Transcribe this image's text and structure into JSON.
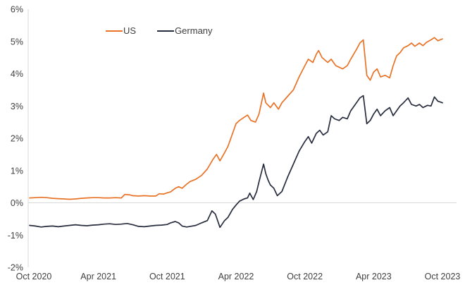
{
  "chart_data": {
    "type": "line",
    "title": "",
    "x_axis": {
      "unit": "months since Oct 2020",
      "range": [
        0,
        36
      ],
      "tick_positions": [
        0,
        6,
        12,
        18,
        24,
        30,
        36
      ],
      "tick_labels": [
        "Oct 2020",
        "Apr 2021",
        "Oct 2021",
        "Apr 2022",
        "Oct 2022",
        "Apr 2023",
        "Oct 2023"
      ]
    },
    "y_axis": {
      "range": [
        -2,
        6
      ],
      "tick_values": [
        6,
        5,
        4,
        3,
        2,
        1,
        0,
        -1,
        -2
      ],
      "tick_labels": [
        "6%",
        "5%",
        "4%",
        "3%",
        "2%",
        "1%",
        "0%",
        "-1%",
        "-2%"
      ],
      "zero_gridline": true
    },
    "legend": {
      "position": "top-center-left",
      "items": [
        {
          "label": "US",
          "color": "#e87326"
        },
        {
          "label": "Germany",
          "color": "#282d3e"
        }
      ]
    },
    "colors": {
      "axis_line": "#d9d9d9",
      "zero_gridline": "#d9d9d9",
      "label_text": "#3f3f3f",
      "background": "#ffffff"
    },
    "series": [
      {
        "name": "US",
        "color": "#e87326",
        "points": [
          [
            0,
            0.15
          ],
          [
            0.5,
            0.16
          ],
          [
            1,
            0.17
          ],
          [
            1.5,
            0.16
          ],
          [
            2,
            0.14
          ],
          [
            2.5,
            0.13
          ],
          [
            3,
            0.12
          ],
          [
            3.5,
            0.11
          ],
          [
            4,
            0.12
          ],
          [
            4.5,
            0.14
          ],
          [
            5,
            0.15
          ],
          [
            5.5,
            0.16
          ],
          [
            6,
            0.16
          ],
          [
            6.5,
            0.15
          ],
          [
            7,
            0.15
          ],
          [
            7.5,
            0.16
          ],
          [
            8,
            0.15
          ],
          [
            8.3,
            0.26
          ],
          [
            8.7,
            0.25
          ],
          [
            9,
            0.22
          ],
          [
            9.5,
            0.21
          ],
          [
            10,
            0.22
          ],
          [
            10.5,
            0.21
          ],
          [
            11,
            0.21
          ],
          [
            11.3,
            0.28
          ],
          [
            11.7,
            0.27
          ],
          [
            12,
            0.31
          ],
          [
            12.3,
            0.34
          ],
          [
            12.7,
            0.45
          ],
          [
            13,
            0.5
          ],
          [
            13.3,
            0.45
          ],
          [
            13.7,
            0.58
          ],
          [
            14,
            0.66
          ],
          [
            14.5,
            0.73
          ],
          [
            15,
            0.85
          ],
          [
            15.5,
            1.05
          ],
          [
            16,
            1.35
          ],
          [
            16.3,
            1.5
          ],
          [
            16.6,
            1.3
          ],
          [
            17,
            1.55
          ],
          [
            17.3,
            1.75
          ],
          [
            17.7,
            2.15
          ],
          [
            18,
            2.45
          ],
          [
            18.3,
            2.55
          ],
          [
            18.7,
            2.65
          ],
          [
            19,
            2.72
          ],
          [
            19.3,
            2.55
          ],
          [
            19.7,
            2.5
          ],
          [
            20,
            2.75
          ],
          [
            20.4,
            3.4
          ],
          [
            20.6,
            3.1
          ],
          [
            21,
            2.95
          ],
          [
            21.3,
            3.1
          ],
          [
            21.7,
            2.9
          ],
          [
            22,
            3.1
          ],
          [
            22.5,
            3.3
          ],
          [
            23,
            3.5
          ],
          [
            23.5,
            3.9
          ],
          [
            24,
            4.25
          ],
          [
            24.3,
            4.45
          ],
          [
            24.7,
            4.35
          ],
          [
            25,
            4.6
          ],
          [
            25.2,
            4.72
          ],
          [
            25.5,
            4.5
          ],
          [
            26,
            4.35
          ],
          [
            26.3,
            4.45
          ],
          [
            26.7,
            4.25
          ],
          [
            27,
            4.2
          ],
          [
            27.3,
            4.15
          ],
          [
            27.7,
            4.25
          ],
          [
            28,
            4.45
          ],
          [
            28.5,
            4.75
          ],
          [
            28.8,
            4.95
          ],
          [
            29.1,
            5.05
          ],
          [
            29.4,
            3.95
          ],
          [
            29.7,
            3.8
          ],
          [
            30,
            4.05
          ],
          [
            30.3,
            4.15
          ],
          [
            30.6,
            3.9
          ],
          [
            31,
            3.95
          ],
          [
            31.4,
            3.87
          ],
          [
            31.7,
            4.25
          ],
          [
            32,
            4.55
          ],
          [
            32.3,
            4.65
          ],
          [
            32.6,
            4.8
          ],
          [
            33,
            4.87
          ],
          [
            33.3,
            4.95
          ],
          [
            33.6,
            4.85
          ],
          [
            34,
            4.95
          ],
          [
            34.3,
            4.87
          ],
          [
            34.6,
            4.97
          ],
          [
            35,
            5.05
          ],
          [
            35.3,
            5.12
          ],
          [
            35.6,
            5.02
          ],
          [
            36,
            5.08
          ]
        ]
      },
      {
        "name": "Germany",
        "color": "#282d3e",
        "points": [
          [
            0,
            -0.7
          ],
          [
            0.5,
            -0.72
          ],
          [
            1,
            -0.75
          ],
          [
            1.5,
            -0.73
          ],
          [
            2,
            -0.72
          ],
          [
            2.5,
            -0.74
          ],
          [
            3,
            -0.72
          ],
          [
            3.5,
            -0.7
          ],
          [
            4,
            -0.68
          ],
          [
            4.5,
            -0.7
          ],
          [
            5,
            -0.71
          ],
          [
            5.5,
            -0.69
          ],
          [
            6,
            -0.68
          ],
          [
            6.5,
            -0.66
          ],
          [
            7,
            -0.65
          ],
          [
            7.5,
            -0.67
          ],
          [
            8,
            -0.66
          ],
          [
            8.5,
            -0.64
          ],
          [
            9,
            -0.68
          ],
          [
            9.5,
            -0.73
          ],
          [
            10,
            -0.74
          ],
          [
            10.5,
            -0.72
          ],
          [
            11,
            -0.7
          ],
          [
            11.5,
            -0.69
          ],
          [
            12,
            -0.67
          ],
          [
            12.3,
            -0.62
          ],
          [
            12.7,
            -0.58
          ],
          [
            13,
            -0.62
          ],
          [
            13.3,
            -0.72
          ],
          [
            13.7,
            -0.75
          ],
          [
            14,
            -0.73
          ],
          [
            14.5,
            -0.7
          ],
          [
            15,
            -0.62
          ],
          [
            15.5,
            -0.55
          ],
          [
            15.9,
            -0.25
          ],
          [
            16.2,
            -0.35
          ],
          [
            16.6,
            -0.76
          ],
          [
            17,
            -0.55
          ],
          [
            17.3,
            -0.45
          ],
          [
            17.7,
            -0.2
          ],
          [
            18,
            -0.07
          ],
          [
            18.3,
            0.05
          ],
          [
            18.7,
            0.12
          ],
          [
            19,
            0.15
          ],
          [
            19.2,
            0.3
          ],
          [
            19.5,
            0.1
          ],
          [
            19.8,
            0.35
          ],
          [
            20,
            0.65
          ],
          [
            20.4,
            1.2
          ],
          [
            20.6,
            0.9
          ],
          [
            20.8,
            0.7
          ],
          [
            21,
            0.55
          ],
          [
            21.3,
            0.45
          ],
          [
            21.6,
            0.22
          ],
          [
            22,
            0.35
          ],
          [
            22.5,
            0.8
          ],
          [
            23,
            1.2
          ],
          [
            23.5,
            1.6
          ],
          [
            24,
            1.9
          ],
          [
            24.3,
            2.05
          ],
          [
            24.6,
            1.85
          ],
          [
            25,
            2.15
          ],
          [
            25.3,
            2.25
          ],
          [
            25.6,
            2.1
          ],
          [
            26,
            2.2
          ],
          [
            26.3,
            2.7
          ],
          [
            26.6,
            2.6
          ],
          [
            27,
            2.55
          ],
          [
            27.3,
            2.65
          ],
          [
            27.7,
            2.6
          ],
          [
            28,
            2.85
          ],
          [
            28.5,
            3.1
          ],
          [
            28.8,
            3.25
          ],
          [
            29.1,
            3.32
          ],
          [
            29.4,
            2.45
          ],
          [
            29.7,
            2.55
          ],
          [
            30,
            2.75
          ],
          [
            30.3,
            2.9
          ],
          [
            30.6,
            2.7
          ],
          [
            31,
            2.85
          ],
          [
            31.4,
            2.95
          ],
          [
            31.7,
            2.7
          ],
          [
            32,
            2.85
          ],
          [
            32.3,
            3.0
          ],
          [
            32.6,
            3.1
          ],
          [
            33,
            3.25
          ],
          [
            33.3,
            3.05
          ],
          [
            33.7,
            3.0
          ],
          [
            34,
            3.05
          ],
          [
            34.3,
            2.95
          ],
          [
            34.7,
            3.02
          ],
          [
            35,
            3.0
          ],
          [
            35.3,
            3.28
          ],
          [
            35.6,
            3.15
          ],
          [
            36,
            3.1
          ]
        ]
      }
    ]
  }
}
